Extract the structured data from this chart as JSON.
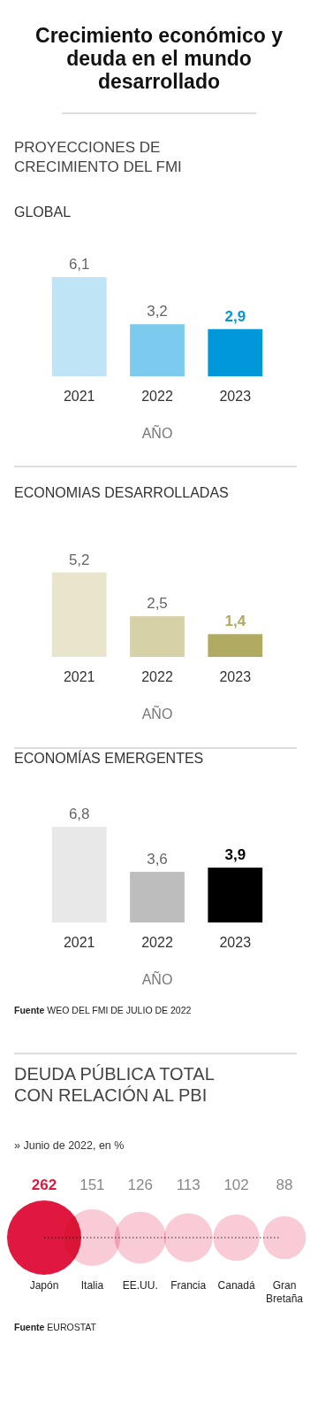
{
  "chart_data": [
    {
      "type": "bar",
      "title": "GLOBAL",
      "annotations": [
        "Crecimiento económico y deuda en el mundo desarrollado",
        "PROYECCIONES DE CRECIMIENTO DEL FMI"
      ],
      "xlabel": "AÑO",
      "categories": [
        "2021",
        "2022",
        "2023"
      ],
      "values": [
        6.1,
        3.2,
        2.9
      ],
      "colors": [
        "#bfe4f6",
        "#7ccbee",
        "#0098d8"
      ],
      "value_labels": [
        "6,1",
        "3,2",
        "2,9"
      ]
    },
    {
      "type": "bar",
      "title": "ECONOMIAS DESARROLLADAS",
      "xlabel": "AÑO",
      "categories": [
        "2021",
        "2022",
        "2023"
      ],
      "values": [
        5.2,
        2.5,
        1.4
      ],
      "colors": [
        "#e9e5cd",
        "#d7d1a8",
        "#b1aa62"
      ],
      "value_labels": [
        "5,2",
        "2,5",
        "1,4"
      ]
    },
    {
      "type": "bar",
      "title": "ECONOMÍAS EMERGENTES",
      "xlabel": "AÑO",
      "categories": [
        "2021",
        "2022",
        "2023"
      ],
      "values": [
        6.8,
        3.6,
        3.9
      ],
      "colors": [
        "#e8e8e8",
        "#bdbdbd",
        "#000000"
      ],
      "value_labels": [
        "6,8",
        "3,6",
        "3,9"
      ],
      "annotations": [
        "Fuente WEO DEL FMI DE JULIO DE 2022"
      ]
    },
    {
      "type": "other",
      "title": "DEUDA PÚBLICA TOTAL CON RELACIÓN AL PBI",
      "subtitle": "» Junio de 2022, en %",
      "categories": [
        "Japón",
        "Italia",
        "EE.UU.",
        "Francia",
        "Canadá",
        "Gran Bretaña"
      ],
      "values": [
        262,
        151,
        126,
        113,
        102,
        88
      ],
      "colors": [
        "#e0183f",
        "#f5b9c8",
        "#f5b9c8",
        "#f5b9c8",
        "#f5b9c8",
        "#f5b9c8"
      ],
      "data_labels": true,
      "annotations": [
        "Fuente EUROSTAT"
      ]
    }
  ]
}
